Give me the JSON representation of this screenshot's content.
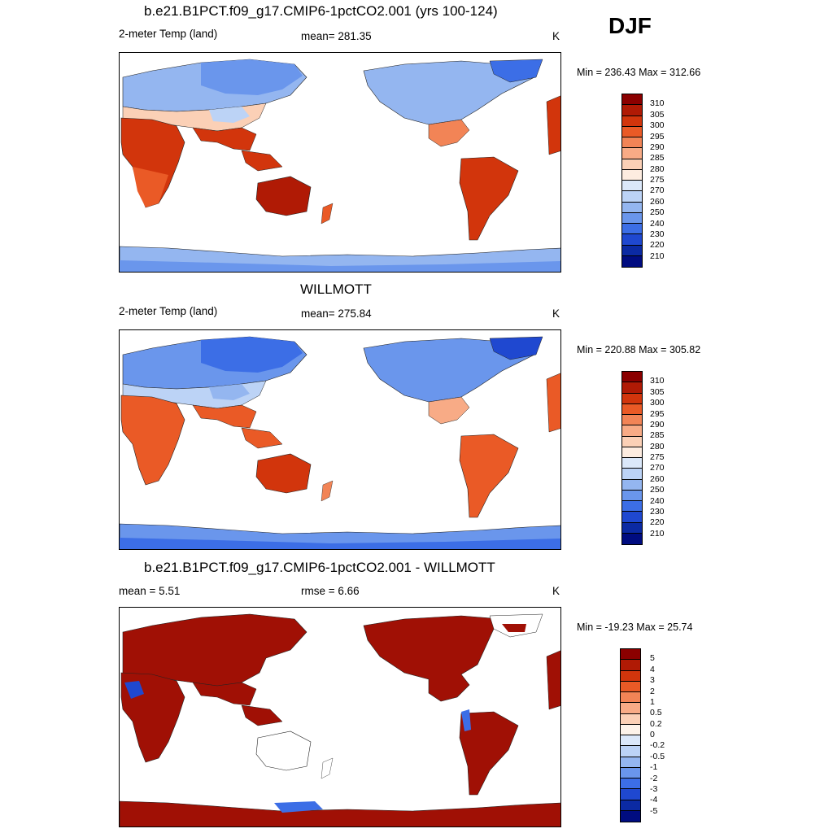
{
  "season": "DJF",
  "panels": [
    {
      "id": "model",
      "title": "b.e21.B1PCT.f09_g17.CMIP6-1pctCO2.001 (yrs 100-124)",
      "left_label": "2-meter Temp (land)",
      "center_label": "mean= 281.35",
      "units": "K",
      "minmax": "Min = 236.43 Max = 312.66",
      "legend_labels": [
        "310",
        "305",
        "300",
        "295",
        "290",
        "285",
        "280",
        "275",
        "270",
        "260",
        "250",
        "240",
        "230",
        "220",
        "210"
      ]
    },
    {
      "id": "obs",
      "title": "WILLMOTT",
      "left_label": "2-meter Temp (land)",
      "center_label": "mean= 275.84",
      "units": "K",
      "minmax": "Min = 220.88 Max = 305.82",
      "legend_labels": [
        "310",
        "305",
        "300",
        "295",
        "290",
        "285",
        "280",
        "275",
        "270",
        "260",
        "250",
        "240",
        "230",
        "220",
        "210"
      ]
    },
    {
      "id": "diff",
      "title": "b.e21.B1PCT.f09_g17.CMIP6-1pctCO2.001 - WILLMOTT",
      "left_label": "mean =   5.51",
      "center_label": "rmse =   6.66",
      "units": "K",
      "minmax": "Min = -19.23 Max =  25.74",
      "legend_labels": [
        "5",
        "4",
        "3",
        "2",
        "1",
        "0.5",
        "0.2",
        "0",
        "-0.2",
        "-0.5",
        "-1",
        "-2",
        "-3",
        "-4",
        "-5"
      ]
    }
  ],
  "colors": {
    "temp_scale": [
      "#8b0000",
      "#b01a05",
      "#d2350c",
      "#ea5a26",
      "#f28456",
      "#f8ab86",
      "#fbd0b6",
      "#fdece0",
      "#dbe8fa",
      "#bcd3f6",
      "#94b6f0",
      "#6a96ec",
      "#3c6ee6",
      "#1f48d0",
      "#0b2aa3",
      "#000c80"
    ],
    "diff_scale": [
      "#8b0000",
      "#b01a05",
      "#d2350c",
      "#ea5a26",
      "#f28456",
      "#f8ab86",
      "#fbd0b6",
      "#fdf3ea",
      "#dbe8fa",
      "#bcd3f6",
      "#94b6f0",
      "#6a96ec",
      "#3c6ee6",
      "#1f48d0",
      "#0b2aa3",
      "#000c80"
    ]
  }
}
